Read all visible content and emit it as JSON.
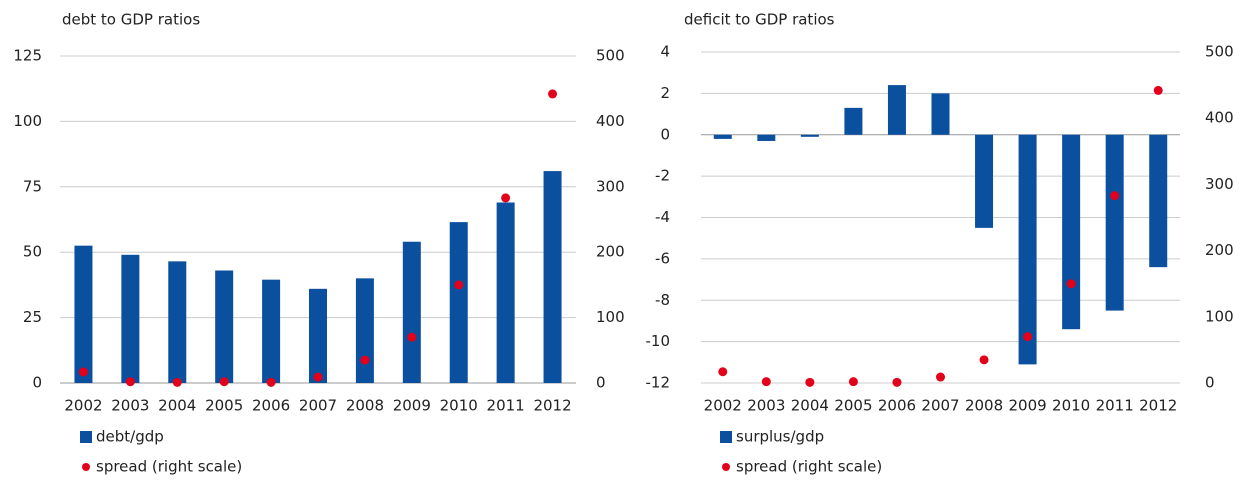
{
  "chart_data": [
    {
      "type": "bar",
      "title": "debt to GDP ratios",
      "categories": [
        "2002",
        "2003",
        "2004",
        "2005",
        "2006",
        "2007",
        "2008",
        "2009",
        "2010",
        "2011",
        "2012"
      ],
      "series": [
        {
          "name": "debt/gdp",
          "type": "bar",
          "color": "#0b4f9f",
          "values": [
            52.5,
            49,
            46.5,
            43,
            39.5,
            36,
            40,
            54,
            61.5,
            69,
            81
          ]
        },
        {
          "name": "spread (right scale)",
          "type": "scatter",
          "axis": "y2",
          "color": "#e2001a",
          "values": [
            17,
            2,
            1,
            2,
            1,
            9,
            35,
            70,
            150,
            283,
            442
          ]
        }
      ],
      "ylim": [
        0,
        125
      ],
      "yticks": [
        0,
        25,
        50,
        75,
        100,
        125
      ],
      "y2lim": [
        0,
        500
      ],
      "y2ticks": [
        0,
        100,
        200,
        300,
        400,
        500
      ],
      "grid": true
    },
    {
      "type": "bar",
      "title": "deficit to GDP ratios",
      "categories": [
        "2002",
        "2003",
        "2004",
        "2005",
        "2006",
        "2007",
        "2008",
        "2009",
        "2010",
        "2011",
        "2012"
      ],
      "series": [
        {
          "name": "surplus/gdp",
          "type": "bar",
          "color": "#0b4f9f",
          "values": [
            -0.2,
            -0.3,
            -0.1,
            1.3,
            2.4,
            2,
            -4.5,
            -11.1,
            -9.4,
            -8.5,
            -6.4
          ]
        },
        {
          "name": "spread (right scale)",
          "type": "scatter",
          "axis": "y2",
          "color": "#e2001a",
          "values": [
            17,
            2,
            1,
            2,
            1,
            9,
            35,
            70,
            150,
            283,
            442
          ]
        }
      ],
      "ylim": [
        -12,
        4
      ],
      "yticks": [
        -12,
        -10,
        -8,
        -6,
        -4,
        -2,
        0,
        2,
        4
      ],
      "y2lim": [
        0,
        500
      ],
      "y2ticks": [
        0,
        100,
        200,
        300,
        400,
        500
      ],
      "grid": true
    }
  ]
}
